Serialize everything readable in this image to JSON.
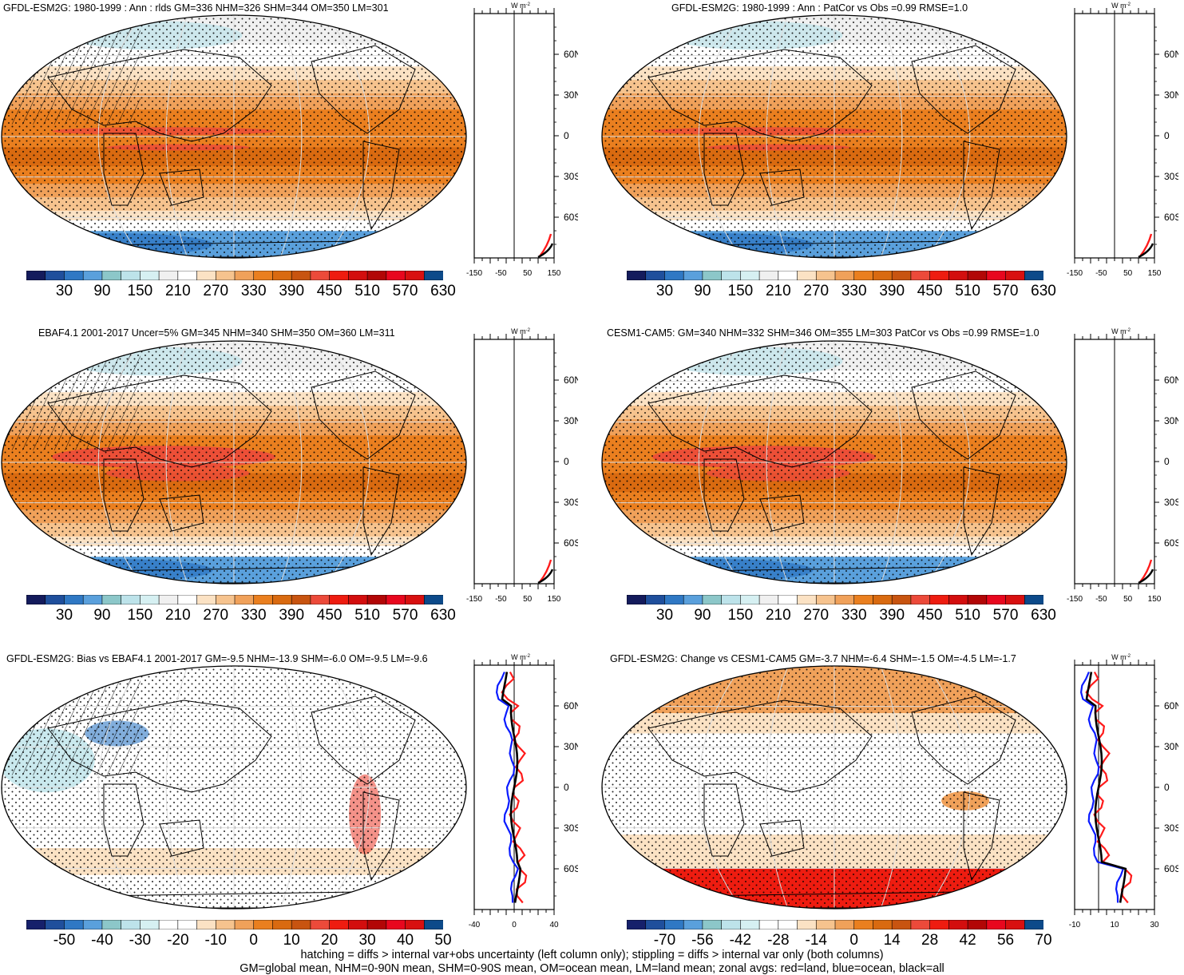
{
  "panels": [
    {
      "title": "GFDL-ESM2G: 1980-1999 : Ann : rlds GM=336 NHM=326 SHM=344 OM=350 LM=301",
      "colorbar_ticks": [
        "30",
        "90",
        "150",
        "210",
        "270",
        "330",
        "390",
        "450",
        "510",
        "570",
        "630"
      ],
      "zonal_ticks": [
        "-150",
        "-50",
        "50",
        "150"
      ],
      "zonal_units": "W m-2",
      "kind": "abs",
      "hatch": true
    },
    {
      "title": "GFDL-ESM2G: 1980-1999 : Ann : PatCor vs Obs =0.99 RMSE=1.0",
      "colorbar_ticks": [
        "30",
        "90",
        "150",
        "210",
        "270",
        "330",
        "390",
        "450",
        "510",
        "570",
        "630"
      ],
      "zonal_ticks": [
        "-150",
        "-50",
        "50",
        "150"
      ],
      "zonal_units": "W m-2",
      "kind": "abs",
      "hatch": false
    },
    {
      "title": "EBAF4.1 2001-2017 Uncer=5% GM=345 NHM=340 SHM=350 OM=360 LM=311",
      "colorbar_ticks": [
        "30",
        "90",
        "150",
        "210",
        "270",
        "330",
        "390",
        "450",
        "510",
        "570",
        "630"
      ],
      "zonal_ticks": [
        "-150",
        "-50",
        "50",
        "150"
      ],
      "zonal_units": "W m-2",
      "kind": "abs",
      "hatch": true
    },
    {
      "title": "CESM1-CAM5: GM=340 NHM=332 SHM=346 OM=355 LM=303 PatCor vs Obs =0.99 RMSE=1.0",
      "colorbar_ticks": [
        "30",
        "90",
        "150",
        "210",
        "270",
        "330",
        "390",
        "450",
        "510",
        "570",
        "630"
      ],
      "zonal_ticks": [
        "-150",
        "-50",
        "50",
        "150"
      ],
      "zonal_units": "W m-2",
      "kind": "abs",
      "hatch": false
    },
    {
      "title": "GFDL-ESM2G: Bias vs EBAF4.1 2001-2017 GM=-9.5 NHM=-13.9 SHM=-6.0 OM=-9.5 LM=-9.6",
      "colorbar_ticks": [
        "-50",
        "-40",
        "-30",
        "-20",
        "-10",
        "0",
        "10",
        "20",
        "30",
        "40",
        "50"
      ],
      "zonal_ticks": [
        "-40",
        "0",
        "40"
      ],
      "zonal_units": "W m-2",
      "kind": "diff",
      "hatch": true
    },
    {
      "title": "GFDL-ESM2G: Change vs CESM1-CAM5 GM=-3.7 NHM=-6.4 SHM=-1.5 OM=-4.5 LM=-1.7",
      "colorbar_ticks": [
        "-70",
        "-56",
        "-42",
        "-28",
        "-14",
        "0",
        "14",
        "28",
        "42",
        "56",
        "70"
      ],
      "zonal_ticks": [
        "-10",
        "10",
        "30"
      ],
      "zonal_units": "W m-2",
      "kind": "diff",
      "hatch": false
    }
  ],
  "lat_labels": [
    "60N",
    "30N",
    "0",
    "30S",
    "60S"
  ],
  "colors": {
    "abs_palette": [
      "#141b5c",
      "#1f4f9c",
      "#2f78c4",
      "#5aa0dc",
      "#8cc7c9",
      "#bde3ea",
      "#d6f0f2",
      "#f0f0f0",
      "#ffffff",
      "#fbe2c4",
      "#f6c38e",
      "#f0a15a",
      "#ea7f1f",
      "#d96a10",
      "#c85410",
      "#ec4a3a",
      "#ee1c10",
      "#d30e0e",
      "#b20606",
      "#e8071e",
      "#d81010",
      "#0c4a8a"
    ],
    "diff_palette": [
      "#16206b",
      "#1f4f9c",
      "#2f78c4",
      "#5aa0dc",
      "#8cc7c9",
      "#bde3ea",
      "#d6f0f2",
      "#ffffff",
      "#ffffff",
      "#fbe2c4",
      "#f6c38e",
      "#f0a15a",
      "#ea7f1f",
      "#d96a10",
      "#c85410",
      "#ec4a3a",
      "#ee1c10",
      "#d30e0e",
      "#b20606",
      "#e8071e",
      "#d81010",
      "#0c4a8a"
    ],
    "land_line": "#ff1a1a",
    "ocean_line": "#0a1bff",
    "all_line": "#000000"
  },
  "footnotes": [
    "hatching = diffs > internal var+obs uncertainty (left column only); stippling = diffs > internal var only (both columns)",
    "GM=global mean, NHM=0-90N mean, SHM=0-90S mean, OM=ocean mean, LM=land mean; zonal avgs: red=land, blue=ocean, black=all"
  ]
}
